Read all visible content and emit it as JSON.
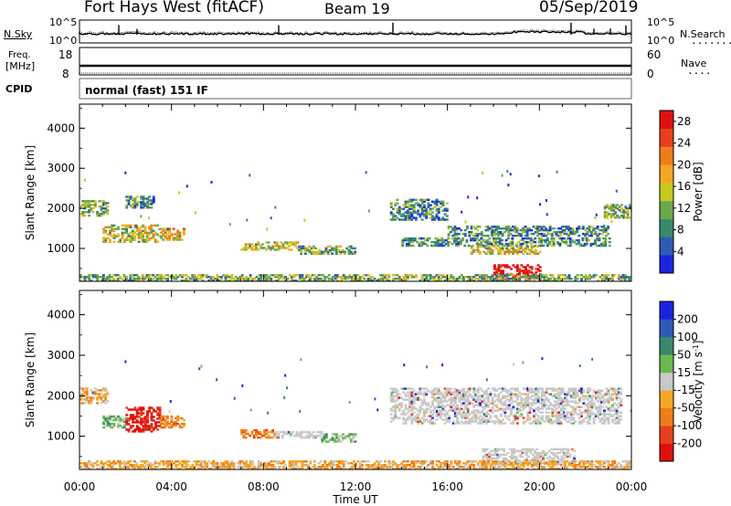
{
  "header": {
    "radar": "Fort Hays West (fitACF)",
    "beam": "Beam 19",
    "date": "05/Sep/2019"
  },
  "noise_panel": {
    "left_label": "N.Sky",
    "right_label": "N.Search",
    "right_legend": "........",
    "left_ticks": [
      "10^5",
      "10^0"
    ],
    "right_ticks": [
      "10^5",
      "10^0"
    ]
  },
  "freq_panel": {
    "left_label_line1": "Freq.",
    "left_label_line2": "[MHz]",
    "right_label": "Nave",
    "right_legend": "....",
    "left_ticks": [
      "18",
      "8"
    ],
    "right_ticks": [
      "60",
      "0"
    ]
  },
  "cpid": {
    "label": "CPID",
    "value": "normal (fast) 151 IF"
  },
  "chart_data": [
    {
      "type": "heatmap",
      "name": "power",
      "ylabel": "Slant Range [km]",
      "xlabel": "",
      "xlim": [
        "00:00",
        "24:00"
      ],
      "ylim": [
        180,
        4600
      ],
      "yticks": [
        "1000",
        "2000",
        "3000",
        "4000"
      ],
      "colorbar": {
        "label": "Power [dB]",
        "ticks": [
          "4",
          "8",
          "12",
          "16",
          "20",
          "24",
          "28"
        ],
        "range": [
          0,
          30
        ],
        "colors": [
          "#1a24e0",
          "#2e5ab8",
          "#3a8a6a",
          "#6aa84f",
          "#c8c81e",
          "#f5a623",
          "#ef7d1a",
          "#e8401c",
          "#e01010"
        ]
      },
      "regions": [
        {
          "t": [
            0.0,
            1.2
          ],
          "r": [
            1800,
            2200
          ],
          "level": 3
        },
        {
          "t": [
            1.0,
            3.5
          ],
          "r": [
            1150,
            1600
          ],
          "level": 4
        },
        {
          "t": [
            2.0,
            3.2
          ],
          "r": [
            2000,
            2300
          ],
          "level": 2
        },
        {
          "t": [
            3.5,
            4.5
          ],
          "r": [
            1200,
            1500
          ],
          "level": 5
        },
        {
          "t": [
            7.0,
            9.5
          ],
          "r": [
            950,
            1150
          ],
          "level": 4
        },
        {
          "t": [
            9.5,
            12.0
          ],
          "r": [
            850,
            1050
          ],
          "level": 3
        },
        {
          "t": [
            13.5,
            16.0
          ],
          "r": [
            1700,
            2200
          ],
          "level": 2
        },
        {
          "t": [
            14.0,
            23.0
          ],
          "r": [
            1050,
            1250
          ],
          "level": 2
        },
        {
          "t": [
            16.0,
            23.0
          ],
          "r": [
            1300,
            1550
          ],
          "level": 2
        },
        {
          "t": [
            17.0,
            20.0
          ],
          "r": [
            850,
            1050
          ],
          "level": 4
        },
        {
          "t": [
            22.8,
            24.0
          ],
          "r": [
            1750,
            2100
          ],
          "level": 3
        },
        {
          "t": [
            18.0,
            20.0
          ],
          "r": [
            200,
            600
          ],
          "level": 9
        },
        {
          "t": [
            0.0,
            24.0
          ],
          "r": [
            180,
            350
          ],
          "level": 3
        }
      ]
    },
    {
      "type": "heatmap",
      "name": "velocity",
      "ylabel": "Slant Range [km]",
      "xlabel": "Time UT",
      "xlim": [
        "00:00",
        "24:00"
      ],
      "ylim": [
        180,
        4600
      ],
      "yticks": [
        "1000",
        "2000",
        "3000",
        "4000"
      ],
      "xticks": [
        "00:00",
        "04:00",
        "08:00",
        "12:00",
        "16:00",
        "20:00",
        "00:00"
      ],
      "colorbar": {
        "label": "Velocity [m s",
        "label_sup": "-1",
        "label_end": "]",
        "ticks": [
          "200",
          "100",
          "50",
          "15",
          "-15",
          "-50",
          "-100",
          "-200"
        ],
        "colors": [
          "#1a24e0",
          "#2e5ab8",
          "#3a8a6a",
          "#6ab84f",
          "#c8c8c8",
          "#f5a623",
          "#ef7d1a",
          "#e8401c",
          "#e01010"
        ]
      },
      "regions": [
        {
          "t": [
            0.0,
            1.2
          ],
          "r": [
            1800,
            2200
          ],
          "v": "-50"
        },
        {
          "t": [
            1.0,
            2.0
          ],
          "r": [
            1200,
            1500
          ],
          "v": "50"
        },
        {
          "t": [
            2.0,
            3.5
          ],
          "r": [
            1100,
            1700
          ],
          "v": "-200"
        },
        {
          "t": [
            3.5,
            4.5
          ],
          "r": [
            1200,
            1500
          ],
          "v": "-100"
        },
        {
          "t": [
            7.0,
            8.5
          ],
          "r": [
            950,
            1150
          ],
          "v": "-100"
        },
        {
          "t": [
            8.5,
            10.5
          ],
          "r": [
            950,
            1100
          ],
          "v": "0"
        },
        {
          "t": [
            10.5,
            12.0
          ],
          "r": [
            850,
            1050
          ],
          "v": "50"
        },
        {
          "t": [
            13.5,
            23.5
          ],
          "r": [
            1300,
            2200
          ],
          "v": "0"
        },
        {
          "t": [
            17.5,
            21.5
          ],
          "r": [
            300,
            700
          ],
          "v": "0"
        },
        {
          "t": [
            0.0,
            24.0
          ],
          "r": [
            180,
            400
          ],
          "v": "-15"
        }
      ]
    }
  ]
}
